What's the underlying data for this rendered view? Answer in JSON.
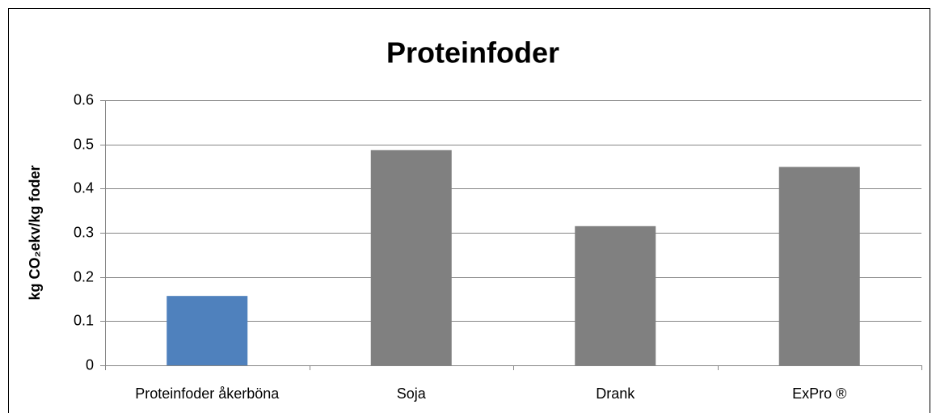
{
  "chart_data": {
    "type": "bar",
    "title": "Proteinfoder",
    "y_label": "kg CO₂ekv/kg foder",
    "categories": [
      "Proteinfoder åkerböna",
      "Soja",
      "Drank",
      "ExPro ®"
    ],
    "values": [
      0.157,
      0.487,
      0.315,
      0.449
    ],
    "colors": [
      "#4f81bd",
      "#808080",
      "#808080",
      "#808080"
    ],
    "ylim": [
      0,
      0.6
    ],
    "yticks": [
      0,
      0.1,
      0.2,
      0.3,
      0.4,
      0.5,
      0.6
    ],
    "grid": true
  }
}
